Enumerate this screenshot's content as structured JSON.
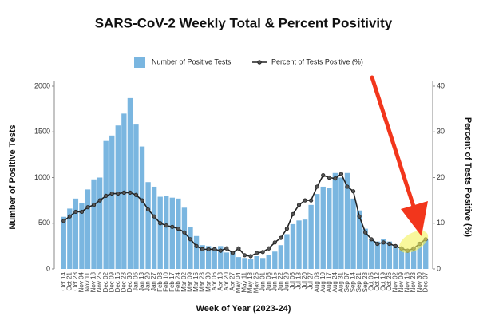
{
  "chart_data": {
    "type": "bar",
    "title": "SARS-CoV-2 Weekly Total & Percent Positivity",
    "x_label": "Week of Year (2023-24)",
    "y_label": "Number of Positive Tests",
    "y2_label": "Percent of Tests Positive (%)",
    "categories": [
      "Oct 14",
      "Oct 21",
      "Oct 28",
      "Nov 04",
      "Nov 11",
      "Nov 18",
      "Nov 25",
      "Dec 02",
      "Dec 09",
      "Dec 16",
      "Dec 23",
      "Dec 30",
      "Jan 06",
      "Jan 13",
      "Jan 20",
      "Jan 27",
      "Feb 03",
      "Feb 10",
      "Feb 17",
      "Feb 24",
      "Mar 02",
      "Mar 09",
      "Mar 16",
      "Mar 23",
      "Mar 30",
      "Apr 06",
      "Apr 13",
      "Apr 20",
      "Apr 27",
      "May 04",
      "May 11",
      "May 18",
      "May 25",
      "Jun 01",
      "Jun 08",
      "Jun 15",
      "Jun 22",
      "Jun 29",
      "Jul 06",
      "Jul 13",
      "Jul 20",
      "Jul 27",
      "Aug 03",
      "Aug 10",
      "Aug 17",
      "Aug 24",
      "Aug 31",
      "Sep 07",
      "Sep 14",
      "Sep 21",
      "Sep 28",
      "Oct 05",
      "Oct 12",
      "Oct 19",
      "Oct 26",
      "Nov 02",
      "Nov 09",
      "Nov 16",
      "Nov 23",
      "Nov 30",
      "Dec 07"
    ],
    "series": [
      {
        "name": "Number of Positive Tests",
        "type": "bar",
        "color": "#7ab6e0",
        "values": [
          570,
          660,
          770,
          720,
          870,
          980,
          1000,
          1400,
          1460,
          1570,
          1700,
          1870,
          1580,
          1340,
          950,
          900,
          790,
          800,
          780,
          770,
          670,
          460,
          360,
          260,
          250,
          230,
          250,
          180,
          200,
          130,
          120,
          110,
          140,
          120,
          150,
          190,
          260,
          380,
          490,
          530,
          540,
          700,
          820,
          900,
          890,
          1050,
          1000,
          1050,
          770,
          640,
          440,
          330,
          300,
          330,
          300,
          260,
          230,
          200,
          230,
          290,
          320
        ]
      },
      {
        "name": "Percent of Tests Positive (%)",
        "type": "line",
        "axis": "y2",
        "color": "#222222",
        "values": [
          10.5,
          11.5,
          12.5,
          12.5,
          13.5,
          14,
          15,
          16,
          16.5,
          16.5,
          16.7,
          16.7,
          16.2,
          15,
          13,
          11.5,
          10,
          9.5,
          9.2,
          8.8,
          8,
          6.5,
          5,
          4.3,
          4.3,
          4.3,
          4,
          4.5,
          3.5,
          4.5,
          3,
          2.8,
          3.5,
          3.7,
          4.5,
          5.8,
          6.8,
          8.8,
          12,
          14,
          15,
          15,
          18,
          20.5,
          20,
          19.8,
          20.8,
          18,
          17,
          11.5,
          8,
          6.5,
          5.5,
          5.8,
          5.5,
          5,
          4.5,
          4,
          4.5,
          5.5,
          6.5
        ]
      }
    ],
    "ylim": [
      0,
      2000
    ],
    "yticks": [
      0,
      500,
      1000,
      1500,
      2000
    ],
    "y2lim": [
      0,
      40
    ],
    "y2ticks": [
      0,
      10,
      20,
      30,
      40
    ],
    "grid": false,
    "legend": "top"
  }
}
